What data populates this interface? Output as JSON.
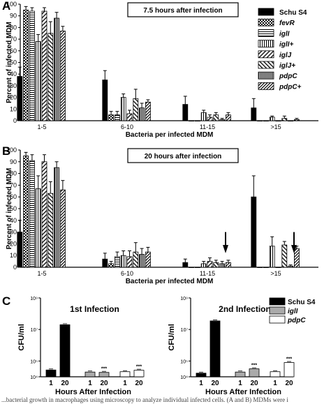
{
  "caption": "...bacterial growth in macrophages using microscopy to analyze individual infected cells. (A and B) MDMs were i",
  "legend": {
    "entries": [
      {
        "name": "Schu S4",
        "pattern": "solid-black"
      },
      {
        "name": "fevR",
        "pattern": "checker"
      },
      {
        "name": "iglI",
        "pattern": "hlines"
      },
      {
        "name": "iglI+",
        "pattern": "vlines"
      },
      {
        "name": "iglJ",
        "pattern": "diag-up"
      },
      {
        "name": "iglJ+",
        "pattern": "diag-down"
      },
      {
        "name": "pdpC",
        "pattern": "vlines-dense"
      },
      {
        "name": "pdpC+",
        "pattern": "diag-dense"
      }
    ]
  },
  "legend_c": {
    "entries": [
      {
        "name": "Schu S4",
        "fill": "#000000"
      },
      {
        "name": "iglI",
        "fill": "#aaaaaa"
      },
      {
        "name": "pdpC",
        "fill": "#ffffff"
      }
    ]
  },
  "chart_data": [
    {
      "panel": "A",
      "type": "bar",
      "title": "7.5 hours after infection",
      "xlabel": "Bacteria per infected MDM",
      "ylabel": "Percent of infected MDM",
      "ylim": [
        0,
        100
      ],
      "yticks": [
        0,
        10,
        20,
        30,
        40,
        50,
        60,
        70,
        80,
        90,
        100
      ],
      "categories": [
        "1-5",
        "6-10",
        "11-15",
        ">15"
      ],
      "series": [
        {
          "name": "Schu S4",
          "values": [
            38,
            35,
            14,
            11
          ],
          "errors": [
            8,
            8,
            7,
            8
          ]
        },
        {
          "name": "fevR",
          "values": [
            95,
            5,
            0,
            0
          ],
          "errors": [
            3,
            3,
            0,
            0
          ]
        },
        {
          "name": "iglI",
          "values": [
            94,
            5,
            0,
            0
          ],
          "errors": [
            3,
            3,
            0,
            0
          ]
        },
        {
          "name": "iglI+",
          "values": [
            68,
            20,
            7,
            3
          ],
          "errors": [
            6,
            3,
            2,
            1
          ]
        },
        {
          "name": "iglJ",
          "values": [
            94,
            6,
            3,
            0
          ],
          "errors": [
            3,
            3,
            2,
            0
          ]
        },
        {
          "name": "iglJ+",
          "values": [
            75,
            19,
            5,
            2
          ],
          "errors": [
            10,
            8,
            2,
            2
          ]
        },
        {
          "name": "pdpC",
          "values": [
            88,
            11,
            1,
            0
          ],
          "errors": [
            5,
            4,
            1,
            0
          ]
        },
        {
          "name": "pdpC+",
          "values": [
            77,
            16,
            5,
            1
          ],
          "errors": [
            4,
            2,
            2,
            1
          ]
        }
      ],
      "annotations": []
    },
    {
      "panel": "B",
      "type": "bar",
      "title": "20 hours after infection",
      "xlabel": "Bacteria per infected MDM",
      "ylabel": "Percent of infected MDM",
      "ylim": [
        0,
        100
      ],
      "yticks": [
        0,
        10,
        20,
        30,
        40,
        50,
        60,
        70,
        80,
        90,
        100
      ],
      "categories": [
        "1-5",
        "6-10",
        "11-15",
        ">15"
      ],
      "series": [
        {
          "name": "Schu S4",
          "values": [
            30,
            7,
            4,
            60
          ],
          "errors": [
            10,
            5,
            3,
            18
          ]
        },
        {
          "name": "fevR",
          "values": [
            95,
            3,
            0,
            0
          ],
          "errors": [
            3,
            2,
            0,
            0
          ]
        },
        {
          "name": "iglI",
          "values": [
            91,
            9,
            0,
            0
          ],
          "errors": [
            5,
            4,
            0,
            0
          ]
        },
        {
          "name": "iglI+",
          "values": [
            67,
            10,
            3,
            18
          ],
          "errors": [
            11,
            4,
            2,
            8
          ]
        },
        {
          "name": "iglJ",
          "values": [
            90,
            9,
            5,
            0
          ],
          "errors": [
            6,
            5,
            3,
            0
          ]
        },
        {
          "name": "iglJ+",
          "values": [
            63,
            13,
            4,
            19
          ],
          "errors": [
            10,
            8,
            2,
            3
          ]
        },
        {
          "name": "pdpC",
          "values": [
            85,
            11,
            3,
            1
          ],
          "errors": [
            5,
            5,
            2,
            1
          ]
        },
        {
          "name": "pdpC+",
          "values": [
            66,
            13,
            4,
            16
          ],
          "errors": [
            8,
            4,
            2,
            2
          ]
        }
      ],
      "annotations": [
        {
          "type": "arrow-down",
          "category": "11-15"
        },
        {
          "type": "arrow-down",
          "category": ">15"
        }
      ]
    },
    {
      "panel": "C",
      "type": "bar",
      "title": "1st Infection",
      "xlabel": "Hours After Infection",
      "ylabel": "CFU/ml",
      "yscale": "log",
      "ylim": [
        10000,
        1000000000
      ],
      "yticks": [
        "10⁴",
        "10⁵",
        "10⁷",
        "10⁹"
      ],
      "categories": [
        "1",
        "20"
      ],
      "series": [
        {
          "name": "Schu S4",
          "values": [
            27000,
            20000000
          ]
        },
        {
          "name": "iglI",
          "values": [
            20000,
            19000
          ]
        },
        {
          "name": "pdpC",
          "values": [
            21000,
            26000
          ]
        }
      ],
      "annotations": [
        {
          "series": "iglI",
          "category": "20",
          "text": "***"
        },
        {
          "series": "pdpC",
          "category": "20",
          "text": "***"
        }
      ]
    },
    {
      "panel": "C",
      "type": "bar",
      "title": "2nd Infection",
      "xlabel": "Hours After Infection",
      "ylabel": "CFU/ml",
      "yscale": "log",
      "ylim": [
        10000,
        1000000000
      ],
      "yticks": [
        "10⁴",
        "10⁵",
        "10⁷",
        "10⁹"
      ],
      "categories": [
        "1",
        "20"
      ],
      "series": [
        {
          "name": "Schu S4",
          "values": [
            17000,
            35000000
          ]
        },
        {
          "name": "iglI",
          "values": [
            20000,
            32000
          ]
        },
        {
          "name": "pdpC",
          "values": [
            21000,
            80000
          ]
        }
      ],
      "annotations": [
        {
          "series": "iglI",
          "category": "20",
          "text": "***"
        },
        {
          "series": "pdpC",
          "category": "20",
          "text": "***"
        }
      ]
    }
  ]
}
